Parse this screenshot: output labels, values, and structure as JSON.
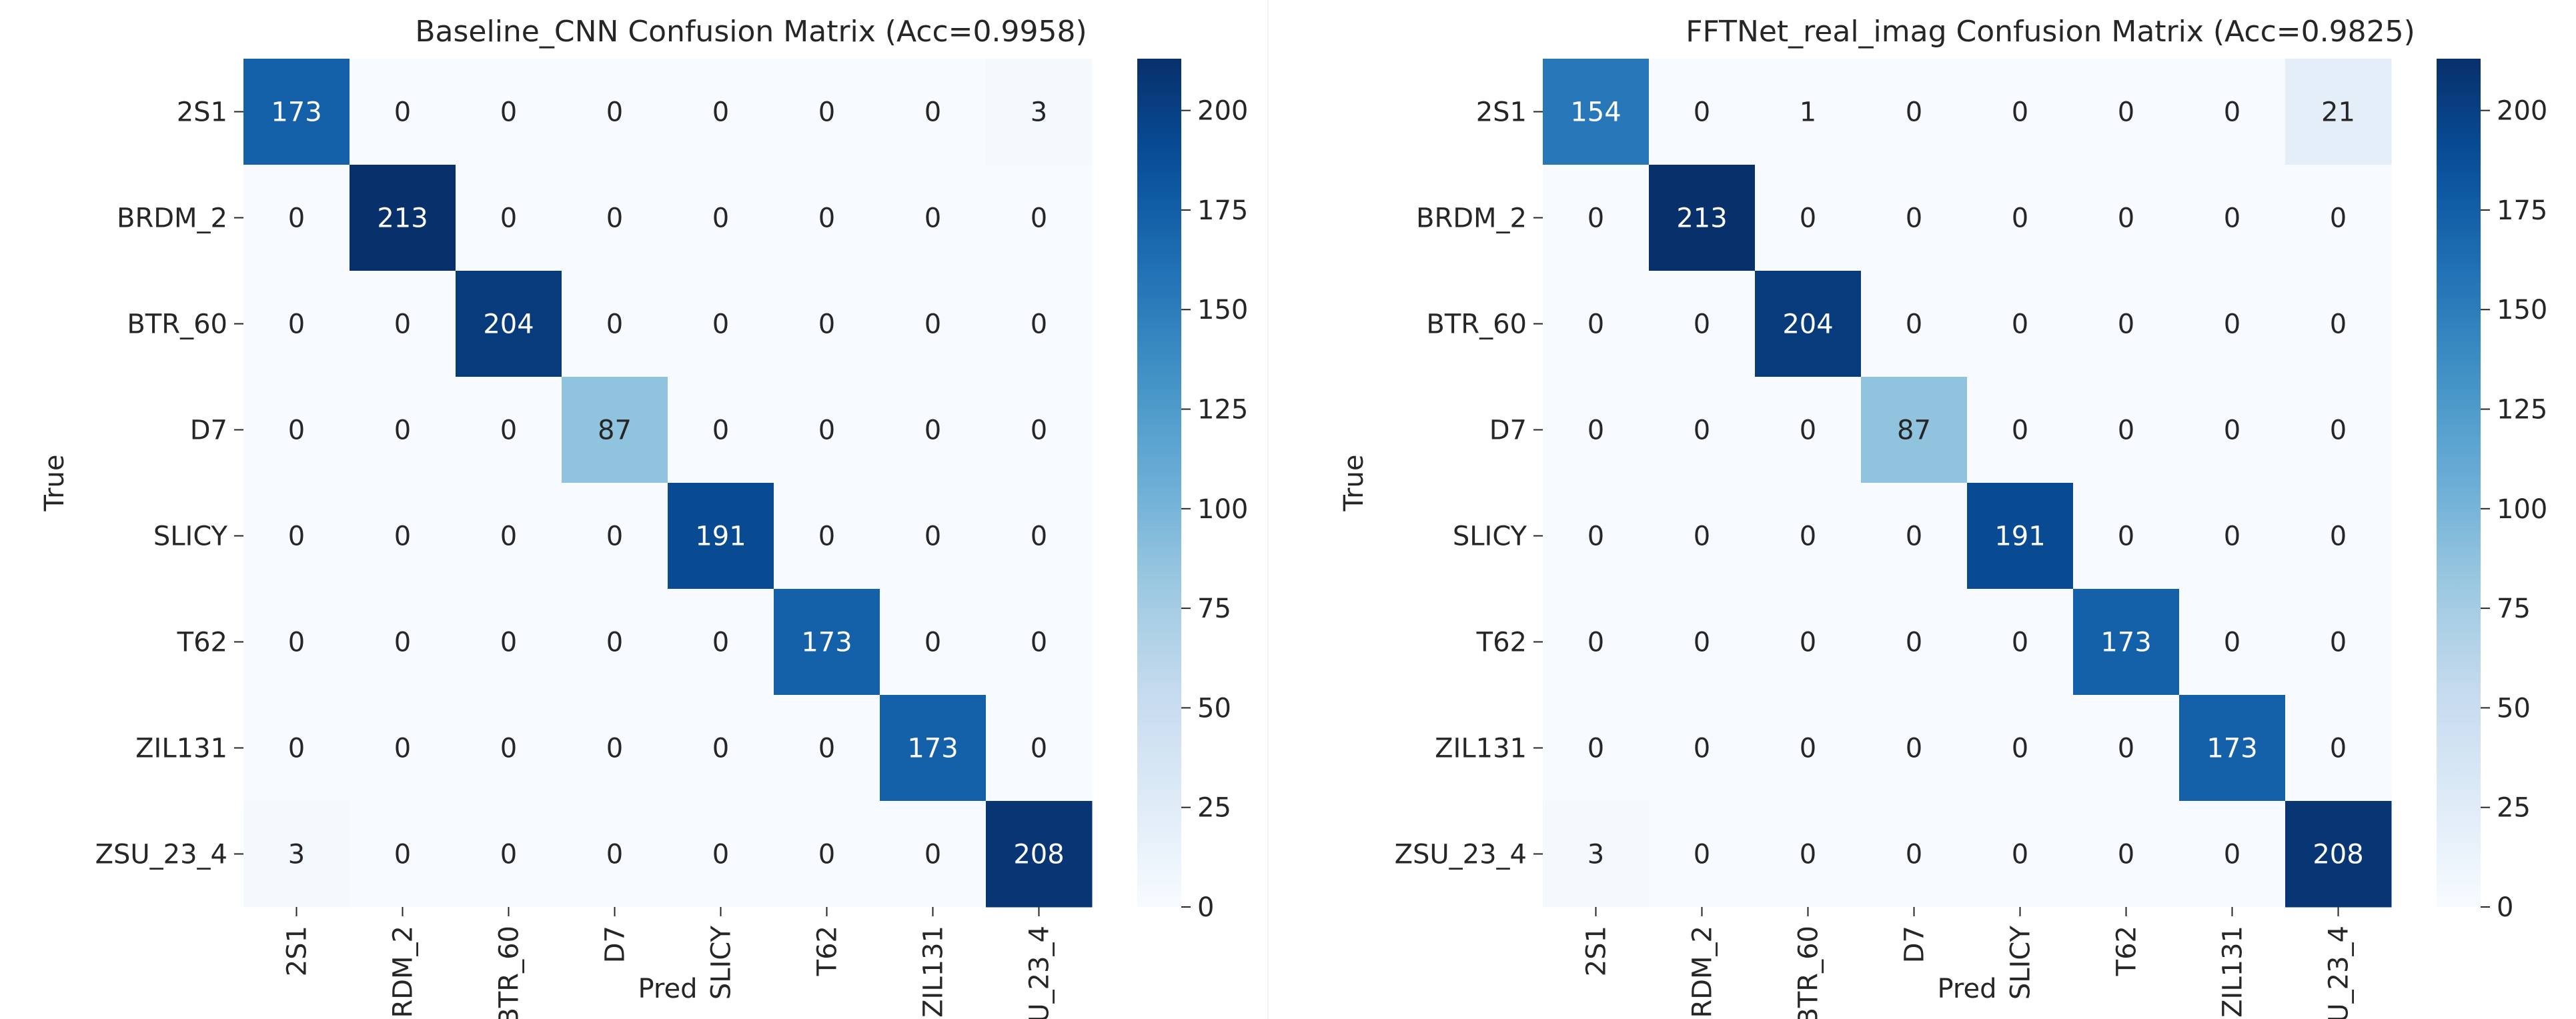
{
  "chart_data": [
    {
      "type": "heatmap",
      "title": "Baseline_CNN Confusion Matrix (Acc=0.9958)",
      "xlabel": "Pred",
      "ylabel": "True",
      "categories": [
        "2S1",
        "BRDM_2",
        "BTR_60",
        "D7",
        "SLICY",
        "T62",
        "ZIL131",
        "ZSU_23_4"
      ],
      "matrix": [
        [
          173,
          0,
          0,
          0,
          0,
          0,
          0,
          3
        ],
        [
          0,
          213,
          0,
          0,
          0,
          0,
          0,
          0
        ],
        [
          0,
          0,
          204,
          0,
          0,
          0,
          0,
          0
        ],
        [
          0,
          0,
          0,
          87,
          0,
          0,
          0,
          0
        ],
        [
          0,
          0,
          0,
          0,
          191,
          0,
          0,
          0
        ],
        [
          0,
          0,
          0,
          0,
          0,
          173,
          0,
          0
        ],
        [
          0,
          0,
          0,
          0,
          0,
          0,
          173,
          0
        ],
        [
          3,
          0,
          0,
          0,
          0,
          0,
          0,
          208
        ]
      ],
      "colorbar": {
        "min": 0,
        "max": 213,
        "ticks": [
          0,
          25,
          50,
          75,
          100,
          125,
          150,
          175,
          200
        ]
      },
      "colormap": "Blues"
    },
    {
      "type": "heatmap",
      "title": "FFTNet_real_imag Confusion Matrix (Acc=0.9825)",
      "xlabel": "Pred",
      "ylabel": "True",
      "categories": [
        "2S1",
        "BRDM_2",
        "BTR_60",
        "D7",
        "SLICY",
        "T62",
        "ZIL131",
        "ZSU_23_4"
      ],
      "matrix": [
        [
          154,
          0,
          1,
          0,
          0,
          0,
          0,
          21
        ],
        [
          0,
          213,
          0,
          0,
          0,
          0,
          0,
          0
        ],
        [
          0,
          0,
          204,
          0,
          0,
          0,
          0,
          0
        ],
        [
          0,
          0,
          0,
          87,
          0,
          0,
          0,
          0
        ],
        [
          0,
          0,
          0,
          0,
          191,
          0,
          0,
          0
        ],
        [
          0,
          0,
          0,
          0,
          0,
          173,
          0,
          0
        ],
        [
          0,
          0,
          0,
          0,
          0,
          0,
          173,
          0
        ],
        [
          3,
          0,
          0,
          0,
          0,
          0,
          0,
          208
        ]
      ],
      "colorbar": {
        "min": 0,
        "max": 213,
        "ticks": [
          0,
          25,
          50,
          75,
          100,
          125,
          150,
          175,
          200
        ]
      },
      "colormap": "Blues"
    }
  ]
}
